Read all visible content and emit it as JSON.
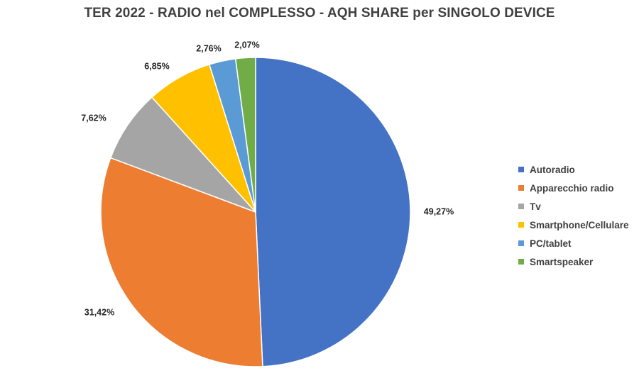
{
  "chart_data": {
    "type": "pie",
    "title": "TER 2022 - RADIO nel COMPLESSO - AQH SHARE per SINGOLO DEVICE",
    "categories": [
      "Autoradio",
      "Apparecchio radio",
      "Tv",
      "Smartphone/Cellulare",
      "PC/tablet",
      "Smartspeaker"
    ],
    "values": [
      49.27,
      31.42,
      7.62,
      6.85,
      2.76,
      2.07
    ],
    "data_labels": [
      "49,27%",
      "31,42%",
      "7,62%",
      "6,85%",
      "2,76%",
      "2,07%"
    ],
    "colors": [
      "#4472C4",
      "#ED7D31",
      "#A5A5A5",
      "#FFC000",
      "#5B9BD5",
      "#70AD47"
    ],
    "legend_position": "right",
    "start_angle": "top",
    "direction": "clockwise"
  }
}
